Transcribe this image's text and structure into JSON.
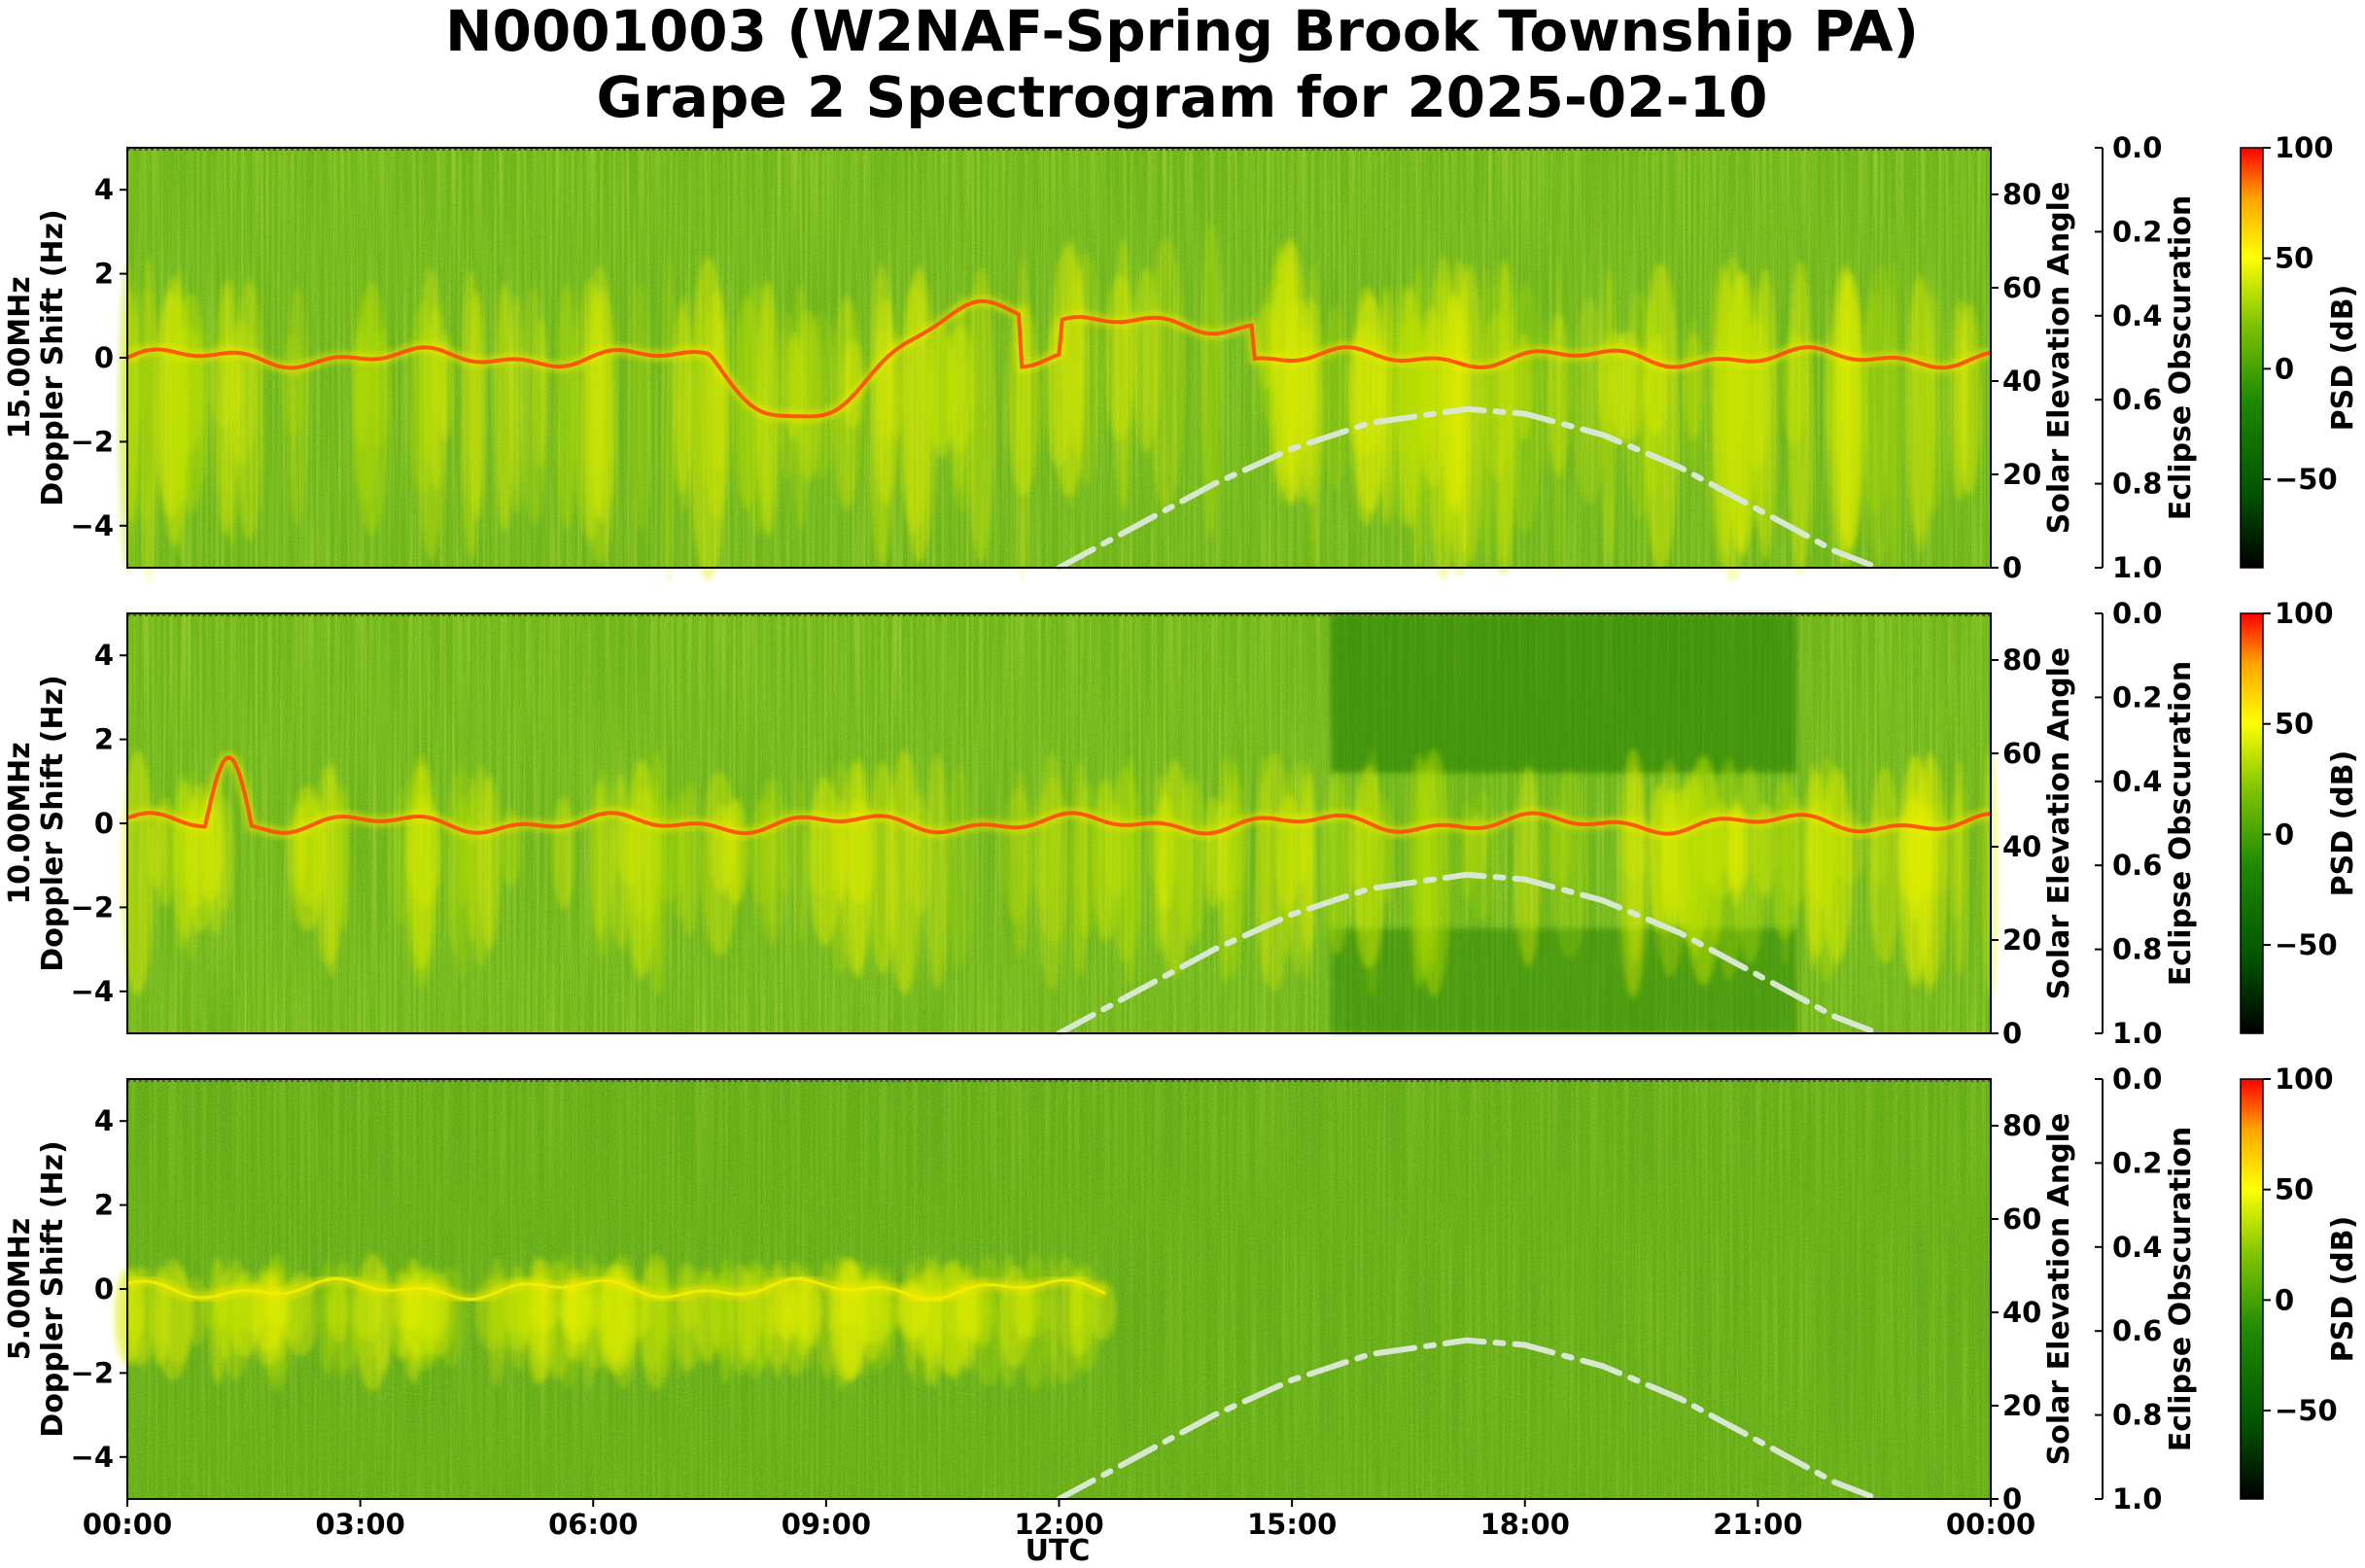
{
  "chart_data": {
    "type": "heatmap",
    "title_line1": "N0001003 (W2NAF-Spring Brook Township PA)",
    "title_line2": "Grape 2 Spectrogram for 2025-02-10",
    "xlabel": "UTC",
    "x_ticks": [
      "00:00",
      "03:00",
      "06:00",
      "09:00",
      "12:00",
      "15:00",
      "18:00",
      "21:00",
      "00:00"
    ],
    "x_range_hours": [
      0,
      24
    ],
    "ylabel_doppler": "Doppler Shift (Hz)",
    "ylim_doppler": [
      -5,
      5
    ],
    "y_ticks_doppler": [
      "4",
      "2",
      "0",
      "−2",
      "−4"
    ],
    "ylabel_solar": "Solar Elevation Angle",
    "ylim_solar": [
      0,
      90
    ],
    "y_ticks_solar": [
      "80",
      "60",
      "40",
      "20",
      "0"
    ],
    "ylabel_eclipse": "Eclipse Obscuration",
    "y_ticks_eclipse": [
      "0.0",
      "0.2",
      "0.4",
      "0.6",
      "0.8",
      "1.0"
    ],
    "colorbar_label": "PSD (dB)",
    "colorbar_range": [
      -90,
      100
    ],
    "colorbar_ticks": [
      "100",
      "50",
      "0",
      "−50"
    ],
    "colormap": [
      "#000000",
      "#006400",
      "#2f8f00",
      "#8cc800",
      "#ffff00",
      "#ffb000",
      "#ff0000"
    ],
    "solar_elevation_curve": {
      "x_hours": [
        12.0,
        13.0,
        14.0,
        15.0,
        16.0,
        17.25,
        18.0,
        19.0,
        20.0,
        21.0,
        22.0,
        22.55
      ],
      "elevation_deg": [
        0,
        9,
        18,
        25.5,
        31,
        34,
        33,
        28.5,
        21.5,
        12.5,
        3.5,
        0
      ],
      "style": "dash-dot",
      "color": "#d8e8d0"
    },
    "panels": [
      {
        "name": "15MHz",
        "label": "15.00MHz",
        "carrier_trace": "strong red/yellow trace with large Doppler excursions; daytime broadening 12:00-24:00"
      },
      {
        "name": "10MHz",
        "label": "10.00MHz",
        "carrier_trace": "red/yellow trace at night; weak daytime spread"
      },
      {
        "name": "5MHz",
        "label": "5.00MHz",
        "carrier_trace": "weak yellow trace 00:00-12:30; absent afterward"
      }
    ]
  }
}
